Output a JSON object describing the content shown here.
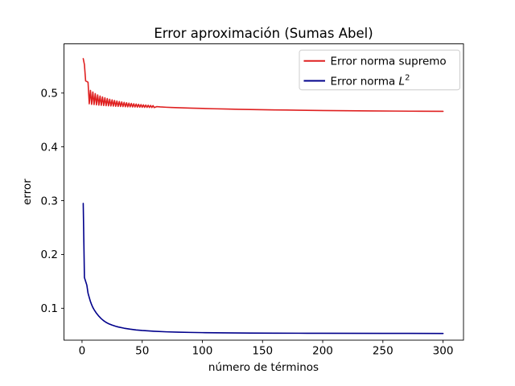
{
  "figure": {
    "title": "Error aproximación (Sumas Abel)",
    "xlabel": "número de términos",
    "ylabel": "error",
    "background": "#ffffff",
    "spine_color": "#000000"
  },
  "legend": {
    "position": "upper right",
    "border_color": "#cccccc",
    "items": [
      {
        "label": "Error norma supremo",
        "color": "#df2020"
      },
      {
        "label_prefix": "Error norma ",
        "label_math": "L",
        "label_sup": "2",
        "color": "#00008b"
      }
    ]
  },
  "chart_data": {
    "type": "line",
    "title": "Error aproximación (Sumas Abel)",
    "xlabel": "número de términos",
    "ylabel": "error",
    "grid": false,
    "legend_position": "upper right",
    "xlim": [
      -15,
      317
    ],
    "ylim": [
      0.0407,
      0.5915
    ],
    "x_ticks": [
      {
        "v": 0,
        "label": "0"
      },
      {
        "v": 50,
        "label": "50"
      },
      {
        "v": 100,
        "label": "100"
      },
      {
        "v": 150,
        "label": "150"
      },
      {
        "v": 200,
        "label": "200"
      },
      {
        "v": 250,
        "label": "250"
      },
      {
        "v": 300,
        "label": "300"
      }
    ],
    "y_ticks": [
      {
        "v": 0.1,
        "label": "0.1"
      },
      {
        "v": 0.2,
        "label": "0.2"
      },
      {
        "v": 0.3,
        "label": "0.3"
      },
      {
        "v": 0.4,
        "label": "0.4"
      },
      {
        "v": 0.5,
        "label": "0.5"
      }
    ],
    "series": [
      {
        "name": "Error norma supremo",
        "color": "#df2020",
        "points": [
          [
            1,
            0.564
          ],
          [
            2,
            0.553
          ],
          [
            3,
            0.5225
          ],
          [
            4,
            0.5215
          ],
          [
            5,
            0.52
          ],
          [
            6,
            0.48
          ],
          [
            7,
            0.505
          ],
          [
            8,
            0.479
          ],
          [
            9,
            0.502
          ],
          [
            10,
            0.4785
          ],
          [
            11,
            0.499
          ],
          [
            12,
            0.478
          ],
          [
            13,
            0.4965
          ],
          [
            14,
            0.4775
          ],
          [
            15,
            0.4945
          ],
          [
            16,
            0.4772
          ],
          [
            17,
            0.4928
          ],
          [
            18,
            0.4768
          ],
          [
            19,
            0.4912
          ],
          [
            20,
            0.4765
          ],
          [
            21,
            0.4898
          ],
          [
            22,
            0.4762
          ],
          [
            23,
            0.4885
          ],
          [
            24,
            0.4759
          ],
          [
            25,
            0.4873
          ],
          [
            26,
            0.4757
          ],
          [
            27,
            0.4862
          ],
          [
            28,
            0.4754
          ],
          [
            29,
            0.4852
          ],
          [
            30,
            0.4752
          ],
          [
            31,
            0.4843
          ],
          [
            32,
            0.475
          ],
          [
            33,
            0.4835
          ],
          [
            34,
            0.4748
          ],
          [
            35,
            0.4827
          ],
          [
            36,
            0.4746
          ],
          [
            37,
            0.482
          ],
          [
            38,
            0.4744
          ],
          [
            39,
            0.4813
          ],
          [
            40,
            0.4743
          ],
          [
            41,
            0.4807
          ],
          [
            42,
            0.4741
          ],
          [
            43,
            0.4801
          ],
          [
            44,
            0.474
          ],
          [
            45,
            0.4796
          ],
          [
            46,
            0.4738
          ],
          [
            47,
            0.4791
          ],
          [
            48,
            0.4737
          ],
          [
            49,
            0.4786
          ],
          [
            50,
            0.4736
          ],
          [
            51,
            0.4782
          ],
          [
            52,
            0.4734
          ],
          [
            53,
            0.4778
          ],
          [
            54,
            0.4733
          ],
          [
            55,
            0.4774
          ],
          [
            56,
            0.4732
          ],
          [
            57,
            0.477
          ],
          [
            58,
            0.4731
          ],
          [
            59,
            0.4767
          ],
          [
            60,
            0.473
          ],
          [
            62,
            0.4748
          ],
          [
            65,
            0.4742
          ],
          [
            70,
            0.4736
          ],
          [
            75,
            0.4731
          ],
          [
            80,
            0.4727
          ],
          [
            90,
            0.472
          ],
          [
            100,
            0.4714
          ],
          [
            110,
            0.4708
          ],
          [
            120,
            0.4703
          ],
          [
            130,
            0.4698
          ],
          [
            140,
            0.4694
          ],
          [
            150,
            0.469
          ],
          [
            160,
            0.4687
          ],
          [
            170,
            0.4684
          ],
          [
            180,
            0.4681
          ],
          [
            200,
            0.4676
          ],
          [
            220,
            0.4672
          ],
          [
            240,
            0.4668
          ],
          [
            260,
            0.4665
          ],
          [
            280,
            0.4662
          ],
          [
            300,
            0.466
          ]
        ]
      },
      {
        "name": "Error norma L^2",
        "color": "#00008b",
        "points": [
          [
            1,
            0.295
          ],
          [
            2,
            0.157
          ],
          [
            3,
            0.15
          ],
          [
            4,
            0.143
          ],
          [
            5,
            0.128
          ],
          [
            6,
            0.12
          ],
          [
            7,
            0.1125
          ],
          [
            8,
            0.1065
          ],
          [
            9,
            0.1015
          ],
          [
            10,
            0.0975
          ],
          [
            11,
            0.094
          ],
          [
            12,
            0.0907
          ],
          [
            14,
            0.0852
          ],
          [
            16,
            0.0806
          ],
          [
            18,
            0.0768
          ],
          [
            20,
            0.0738
          ],
          [
            22,
            0.0714
          ],
          [
            25,
            0.0687
          ],
          [
            28,
            0.0665
          ],
          [
            30,
            0.0653
          ],
          [
            35,
            0.0629
          ],
          [
            40,
            0.0611
          ],
          [
            45,
            0.0597
          ],
          [
            50,
            0.0587
          ],
          [
            60,
            0.0572
          ],
          [
            70,
            0.0562
          ],
          [
            80,
            0.0555
          ],
          [
            90,
            0.0551
          ],
          [
            100,
            0.0547
          ],
          [
            120,
            0.0542
          ],
          [
            140,
            0.0539
          ],
          [
            160,
            0.0537
          ],
          [
            180,
            0.0536
          ],
          [
            200,
            0.0535
          ],
          [
            250,
            0.0533
          ],
          [
            300,
            0.0532
          ]
        ]
      }
    ]
  }
}
